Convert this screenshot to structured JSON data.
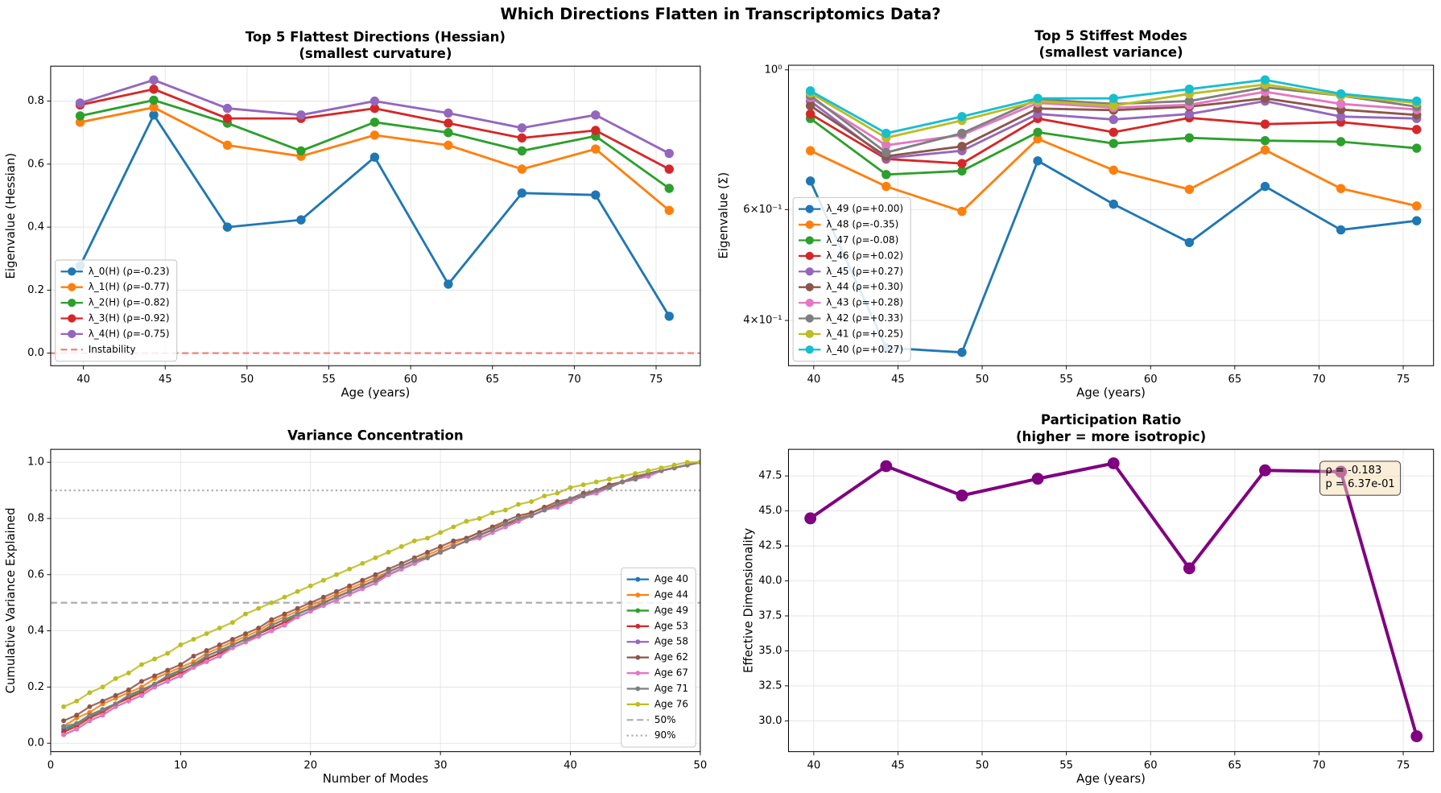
{
  "title": "Which Directions Flatten in Transcriptomics Data?",
  "chart_data": [
    {
      "type": "line",
      "title": "Top 5 Flattest Directions (Hessian)",
      "subtitle": "(smallest curvature)",
      "xlabel": "Age (years)",
      "ylabel": "Eigenvalue (Hessian)",
      "x": [
        39.8,
        44.3,
        48.8,
        53.3,
        57.8,
        62.3,
        66.8,
        71.3,
        75.8
      ],
      "xlim": [
        38.0,
        77.7
      ],
      "ylim": [
        -0.04,
        0.911
      ],
      "xticks": [
        40,
        45,
        50,
        55,
        60,
        65,
        70,
        75
      ],
      "yticks": [
        {
          "value": 0,
          "label": "0.0"
        },
        0.2,
        0.4,
        0.6,
        0.8
      ],
      "grid": true,
      "legend": "lower left",
      "series": [
        {
          "name": "λ_0(H) (ρ=-0.23)",
          "color": "#1f77b4",
          "values": [
            0.277,
            0.756,
            0.4,
            0.423,
            0.622,
            0.219,
            0.508,
            0.502,
            0.117
          ]
        },
        {
          "name": "λ_1(H) (ρ=-0.77)",
          "color": "#ff7f0e",
          "values": [
            0.733,
            0.78,
            0.66,
            0.625,
            0.692,
            0.66,
            0.584,
            0.648,
            0.453
          ]
        },
        {
          "name": "λ_2(H) (ρ=-0.82)",
          "color": "#2ca02c",
          "values": [
            0.753,
            0.803,
            0.73,
            0.642,
            0.733,
            0.7,
            0.642,
            0.689,
            0.523
          ]
        },
        {
          "name": "λ_3(H) (ρ=-0.92)",
          "color": "#d62728",
          "values": [
            0.788,
            0.838,
            0.745,
            0.745,
            0.777,
            0.73,
            0.683,
            0.707,
            0.584
          ]
        },
        {
          "name": "λ_4(H) (ρ=-0.75)",
          "color": "#9467bd",
          "values": [
            0.794,
            0.867,
            0.777,
            0.756,
            0.8,
            0.762,
            0.715,
            0.756,
            0.634
          ]
        }
      ],
      "hlines": [
        {
          "value": 0,
          "label": "Instability",
          "color": "#f07f7f",
          "style": "dashed"
        }
      ]
    },
    {
      "type": "line",
      "title": "Top 5 Stiffest Modes",
      "subtitle": "(smallest variance)",
      "xlabel": "Age (years)",
      "ylabel": "Eigenvalue (Σ)",
      "x": [
        39.8,
        44.3,
        48.8,
        53.3,
        57.8,
        62.3,
        66.8,
        71.3,
        75.8
      ],
      "xlim": [
        38.5,
        76.8
      ],
      "ylim": [
        0.339,
        1.017
      ],
      "yscale": "log",
      "xticks": [
        40,
        45,
        50,
        55,
        60,
        65,
        70,
        75
      ],
      "yticks": [
        {
          "value": 1,
          "label": "10⁰"
        },
        {
          "value": 0.6,
          "label": "6×10⁻¹"
        },
        {
          "value": 0.4,
          "label": "4×10⁻¹"
        }
      ],
      "grid": true,
      "legend": "lower left",
      "series": [
        {
          "name": "λ_49 (ρ=+0.00)",
          "color": "#1f77b4",
          "values": [
            0.666,
            0.362,
            0.356,
            0.717,
            0.612,
            0.532,
            0.653,
            0.557,
            0.576
          ]
        },
        {
          "name": "λ_48 (ρ=-0.35)",
          "color": "#ff7f0e",
          "values": [
            0.744,
            0.653,
            0.596,
            0.777,
            0.693,
            0.646,
            0.746,
            0.648,
            0.608
          ]
        },
        {
          "name": "λ_47 (ρ=-0.08)",
          "color": "#2ca02c",
          "values": [
            0.837,
            0.682,
            0.691,
            0.796,
            0.764,
            0.78,
            0.772,
            0.769,
            0.751
          ]
        },
        {
          "name": "λ_46 (ρ=+0.02)",
          "color": "#d62728",
          "values": [
            0.851,
            0.722,
            0.71,
            0.837,
            0.796,
            0.839,
            0.82,
            0.826,
            0.804
          ]
        },
        {
          "name": "λ_45 (ρ=+0.27)",
          "color": "#9467bd",
          "values": [
            0.892,
            0.724,
            0.744,
            0.851,
            0.834,
            0.851,
            0.892,
            0.843,
            0.837
          ]
        },
        {
          "name": "λ_44 (ρ=+0.30)",
          "color": "#8c564b",
          "values": [
            0.877,
            0.729,
            0.756,
            0.868,
            0.863,
            0.874,
            0.901,
            0.865,
            0.848
          ]
        },
        {
          "name": "λ_43 (ρ=+0.28)",
          "color": "#e377c2",
          "values": [
            0.904,
            0.759,
            0.788,
            0.886,
            0.871,
            0.88,
            0.923,
            0.883,
            0.865
          ]
        },
        {
          "name": "λ_42 (ρ=+0.33)",
          "color": "#7f7f7f",
          "values": [
            0.91,
            0.739,
            0.793,
            0.898,
            0.883,
            0.892,
            0.938,
            0.91,
            0.874
          ]
        },
        {
          "name": "λ_41 (ρ=+0.25)",
          "color": "#bcbd22",
          "values": [
            0.919,
            0.78,
            0.831,
            0.892,
            0.877,
            0.916,
            0.948,
            0.91,
            0.886
          ]
        },
        {
          "name": "λ_40 (ρ=+0.27)",
          "color": "#17becf",
          "values": [
            0.926,
            0.793,
            0.843,
            0.901,
            0.901,
            0.932,
            0.964,
            0.916,
            0.892
          ]
        }
      ]
    },
    {
      "type": "line",
      "title": "Variance Concentration",
      "xlabel": "Number of Modes",
      "ylabel": "Cumulative Variance Explained",
      "x": [
        1,
        2,
        3,
        4,
        5,
        6,
        7,
        8,
        9,
        10,
        11,
        12,
        13,
        14,
        15,
        16,
        17,
        18,
        19,
        20,
        21,
        22,
        23,
        24,
        25,
        26,
        27,
        28,
        29,
        30,
        31,
        32,
        33,
        34,
        35,
        36,
        37,
        38,
        39,
        40,
        41,
        42,
        43,
        44,
        45,
        46,
        47,
        48,
        49,
        50
      ],
      "xlim": [
        0,
        50
      ],
      "ylim": [
        -0.03,
        1.046
      ],
      "xticks": [
        0,
        10,
        20,
        30,
        40,
        50
      ],
      "yticks": [
        {
          "value": 0,
          "label": "0.0"
        },
        0.2,
        0.4,
        0.6,
        0.8,
        {
          "value": 1,
          "label": "1.0"
        }
      ],
      "grid": true,
      "legend": "lower right",
      "series": [
        {
          "name": "Age 40",
          "color": "#1f77b4",
          "values": [
            0.05,
            0.07,
            0.1,
            0.12,
            0.14,
            0.17,
            0.19,
            0.21,
            0.24,
            0.26,
            0.28,
            0.31,
            0.33,
            0.35,
            0.37,
            0.39,
            0.42,
            0.44,
            0.46,
            0.48,
            0.5,
            0.52,
            0.54,
            0.56,
            0.58,
            0.61,
            0.63,
            0.65,
            0.66,
            0.68,
            0.7,
            0.72,
            0.74,
            0.76,
            0.78,
            0.8,
            0.81,
            0.83,
            0.85,
            0.87,
            0.88,
            0.9,
            0.91,
            0.93,
            0.94,
            0.96,
            0.97,
            0.98,
            0.99,
            1.0
          ]
        },
        {
          "name": "Age 44",
          "color": "#ff7f0e",
          "values": [
            0.06,
            0.09,
            0.11,
            0.14,
            0.16,
            0.18,
            0.2,
            0.23,
            0.25,
            0.27,
            0.29,
            0.32,
            0.34,
            0.36,
            0.38,
            0.4,
            0.43,
            0.45,
            0.47,
            0.49,
            0.51,
            0.53,
            0.55,
            0.57,
            0.59,
            0.61,
            0.63,
            0.65,
            0.67,
            0.69,
            0.71,
            0.73,
            0.75,
            0.77,
            0.78,
            0.8,
            0.82,
            0.84,
            0.85,
            0.87,
            0.88,
            0.9,
            0.92,
            0.93,
            0.94,
            0.96,
            0.97,
            0.98,
            0.99,
            1.0
          ]
        },
        {
          "name": "Age 49",
          "color": "#2ca02c",
          "values": [
            0.04,
            0.07,
            0.09,
            0.12,
            0.14,
            0.16,
            0.19,
            0.21,
            0.23,
            0.26,
            0.28,
            0.3,
            0.32,
            0.35,
            0.37,
            0.39,
            0.41,
            0.43,
            0.46,
            0.48,
            0.5,
            0.52,
            0.54,
            0.56,
            0.58,
            0.6,
            0.62,
            0.64,
            0.66,
            0.68,
            0.7,
            0.72,
            0.74,
            0.76,
            0.78,
            0.8,
            0.81,
            0.83,
            0.85,
            0.86,
            0.88,
            0.9,
            0.91,
            0.93,
            0.94,
            0.96,
            0.97,
            0.98,
            0.99,
            1.0
          ]
        },
        {
          "name": "Age 53",
          "color": "#d62728",
          "values": [
            0.04,
            0.06,
            0.09,
            0.11,
            0.14,
            0.16,
            0.18,
            0.21,
            0.23,
            0.25,
            0.27,
            0.3,
            0.32,
            0.34,
            0.36,
            0.39,
            0.41,
            0.43,
            0.45,
            0.47,
            0.5,
            0.52,
            0.54,
            0.56,
            0.58,
            0.6,
            0.62,
            0.64,
            0.66,
            0.68,
            0.7,
            0.72,
            0.74,
            0.76,
            0.78,
            0.79,
            0.81,
            0.83,
            0.85,
            0.86,
            0.88,
            0.9,
            0.91,
            0.93,
            0.94,
            0.96,
            0.97,
            0.98,
            0.99,
            1.0
          ]
        },
        {
          "name": "Age 58",
          "color": "#9467bd",
          "values": [
            0.03,
            0.05,
            0.08,
            0.1,
            0.13,
            0.15,
            0.17,
            0.2,
            0.22,
            0.24,
            0.27,
            0.29,
            0.31,
            0.34,
            0.36,
            0.38,
            0.4,
            0.42,
            0.45,
            0.47,
            0.49,
            0.51,
            0.53,
            0.55,
            0.57,
            0.6,
            0.62,
            0.64,
            0.66,
            0.68,
            0.7,
            0.72,
            0.73,
            0.75,
            0.77,
            0.79,
            0.81,
            0.83,
            0.84,
            0.86,
            0.88,
            0.89,
            0.91,
            0.93,
            0.94,
            0.95,
            0.97,
            0.98,
            0.99,
            1.0
          ]
        },
        {
          "name": "Age 62",
          "color": "#8c564b",
          "values": [
            0.08,
            0.1,
            0.13,
            0.15,
            0.17,
            0.19,
            0.22,
            0.24,
            0.26,
            0.28,
            0.31,
            0.33,
            0.35,
            0.37,
            0.39,
            0.41,
            0.44,
            0.46,
            0.48,
            0.5,
            0.52,
            0.54,
            0.56,
            0.58,
            0.6,
            0.62,
            0.64,
            0.66,
            0.68,
            0.7,
            0.72,
            0.73,
            0.75,
            0.77,
            0.79,
            0.81,
            0.82,
            0.84,
            0.86,
            0.87,
            0.89,
            0.9,
            0.92,
            0.93,
            0.95,
            0.96,
            0.97,
            0.98,
            0.99,
            1.0
          ]
        },
        {
          "name": "Age 67",
          "color": "#e377c2",
          "values": [
            0.03,
            0.05,
            0.08,
            0.1,
            0.13,
            0.15,
            0.17,
            0.2,
            0.22,
            0.24,
            0.27,
            0.29,
            0.31,
            0.34,
            0.36,
            0.38,
            0.4,
            0.42,
            0.45,
            0.47,
            0.49,
            0.51,
            0.53,
            0.55,
            0.57,
            0.6,
            0.62,
            0.64,
            0.66,
            0.68,
            0.7,
            0.72,
            0.73,
            0.75,
            0.77,
            0.79,
            0.81,
            0.83,
            0.84,
            0.86,
            0.88,
            0.89,
            0.91,
            0.93,
            0.94,
            0.95,
            0.97,
            0.98,
            0.99,
            1.0
          ]
        },
        {
          "name": "Age 71",
          "color": "#7f7f7f",
          "values": [
            0.06,
            0.07,
            0.1,
            0.12,
            0.14,
            0.17,
            0.19,
            0.21,
            0.24,
            0.26,
            0.28,
            0.31,
            0.33,
            0.35,
            0.37,
            0.39,
            0.42,
            0.44,
            0.46,
            0.48,
            0.5,
            0.52,
            0.54,
            0.56,
            0.58,
            0.61,
            0.63,
            0.65,
            0.66,
            0.68,
            0.7,
            0.72,
            0.74,
            0.76,
            0.78,
            0.8,
            0.81,
            0.83,
            0.85,
            0.87,
            0.88,
            0.9,
            0.91,
            0.93,
            0.94,
            0.96,
            0.97,
            0.98,
            0.99,
            1.0
          ]
        },
        {
          "name": "Age 76",
          "color": "#bcbd22",
          "values": [
            0.13,
            0.15,
            0.18,
            0.2,
            0.23,
            0.25,
            0.28,
            0.3,
            0.32,
            0.35,
            0.37,
            0.39,
            0.41,
            0.43,
            0.46,
            0.48,
            0.5,
            0.52,
            0.54,
            0.56,
            0.58,
            0.6,
            0.62,
            0.64,
            0.66,
            0.68,
            0.7,
            0.72,
            0.73,
            0.75,
            0.77,
            0.79,
            0.8,
            0.82,
            0.83,
            0.85,
            0.86,
            0.88,
            0.89,
            0.91,
            0.92,
            0.93,
            0.94,
            0.95,
            0.96,
            0.97,
            0.98,
            0.99,
            1.0,
            1.0
          ]
        }
      ],
      "hlines": [
        {
          "value": 0.5,
          "label": "50%",
          "color": "#b0b0b0",
          "style": "dashed"
        },
        {
          "value": 0.9,
          "label": "90%",
          "color": "#b0b0b0",
          "style": "dotted"
        }
      ]
    },
    {
      "type": "line",
      "title": "Participation Ratio",
      "subtitle": "(higher = more isotropic)",
      "xlabel": "Age (years)",
      "ylabel": "Effective Dimensionality",
      "x": [
        39.8,
        44.3,
        48.8,
        53.3,
        57.8,
        62.3,
        66.8,
        71.3,
        75.8
      ],
      "xlim": [
        38.5,
        76.8
      ],
      "ylim": [
        27.8,
        49.4
      ],
      "xticks": [
        40,
        45,
        50,
        55,
        60,
        65,
        70,
        75
      ],
      "yticks": [
        {
          "value": 30,
          "label": "30.0"
        },
        32.5,
        {
          "value": 35,
          "label": "35.0"
        },
        37.5,
        {
          "value": 40,
          "label": "40.0"
        },
        42.5,
        {
          "value": 45,
          "label": "45.0"
        },
        47.5
      ],
      "grid": true,
      "series": [
        {
          "color": "#800080",
          "values": [
            44.47,
            48.2,
            46.1,
            47.3,
            48.4,
            40.9,
            47.9,
            47.8,
            28.9
          ]
        }
      ],
      "annotation": [
        "ρ = -0.183",
        "p = 6.37e-01"
      ]
    }
  ]
}
